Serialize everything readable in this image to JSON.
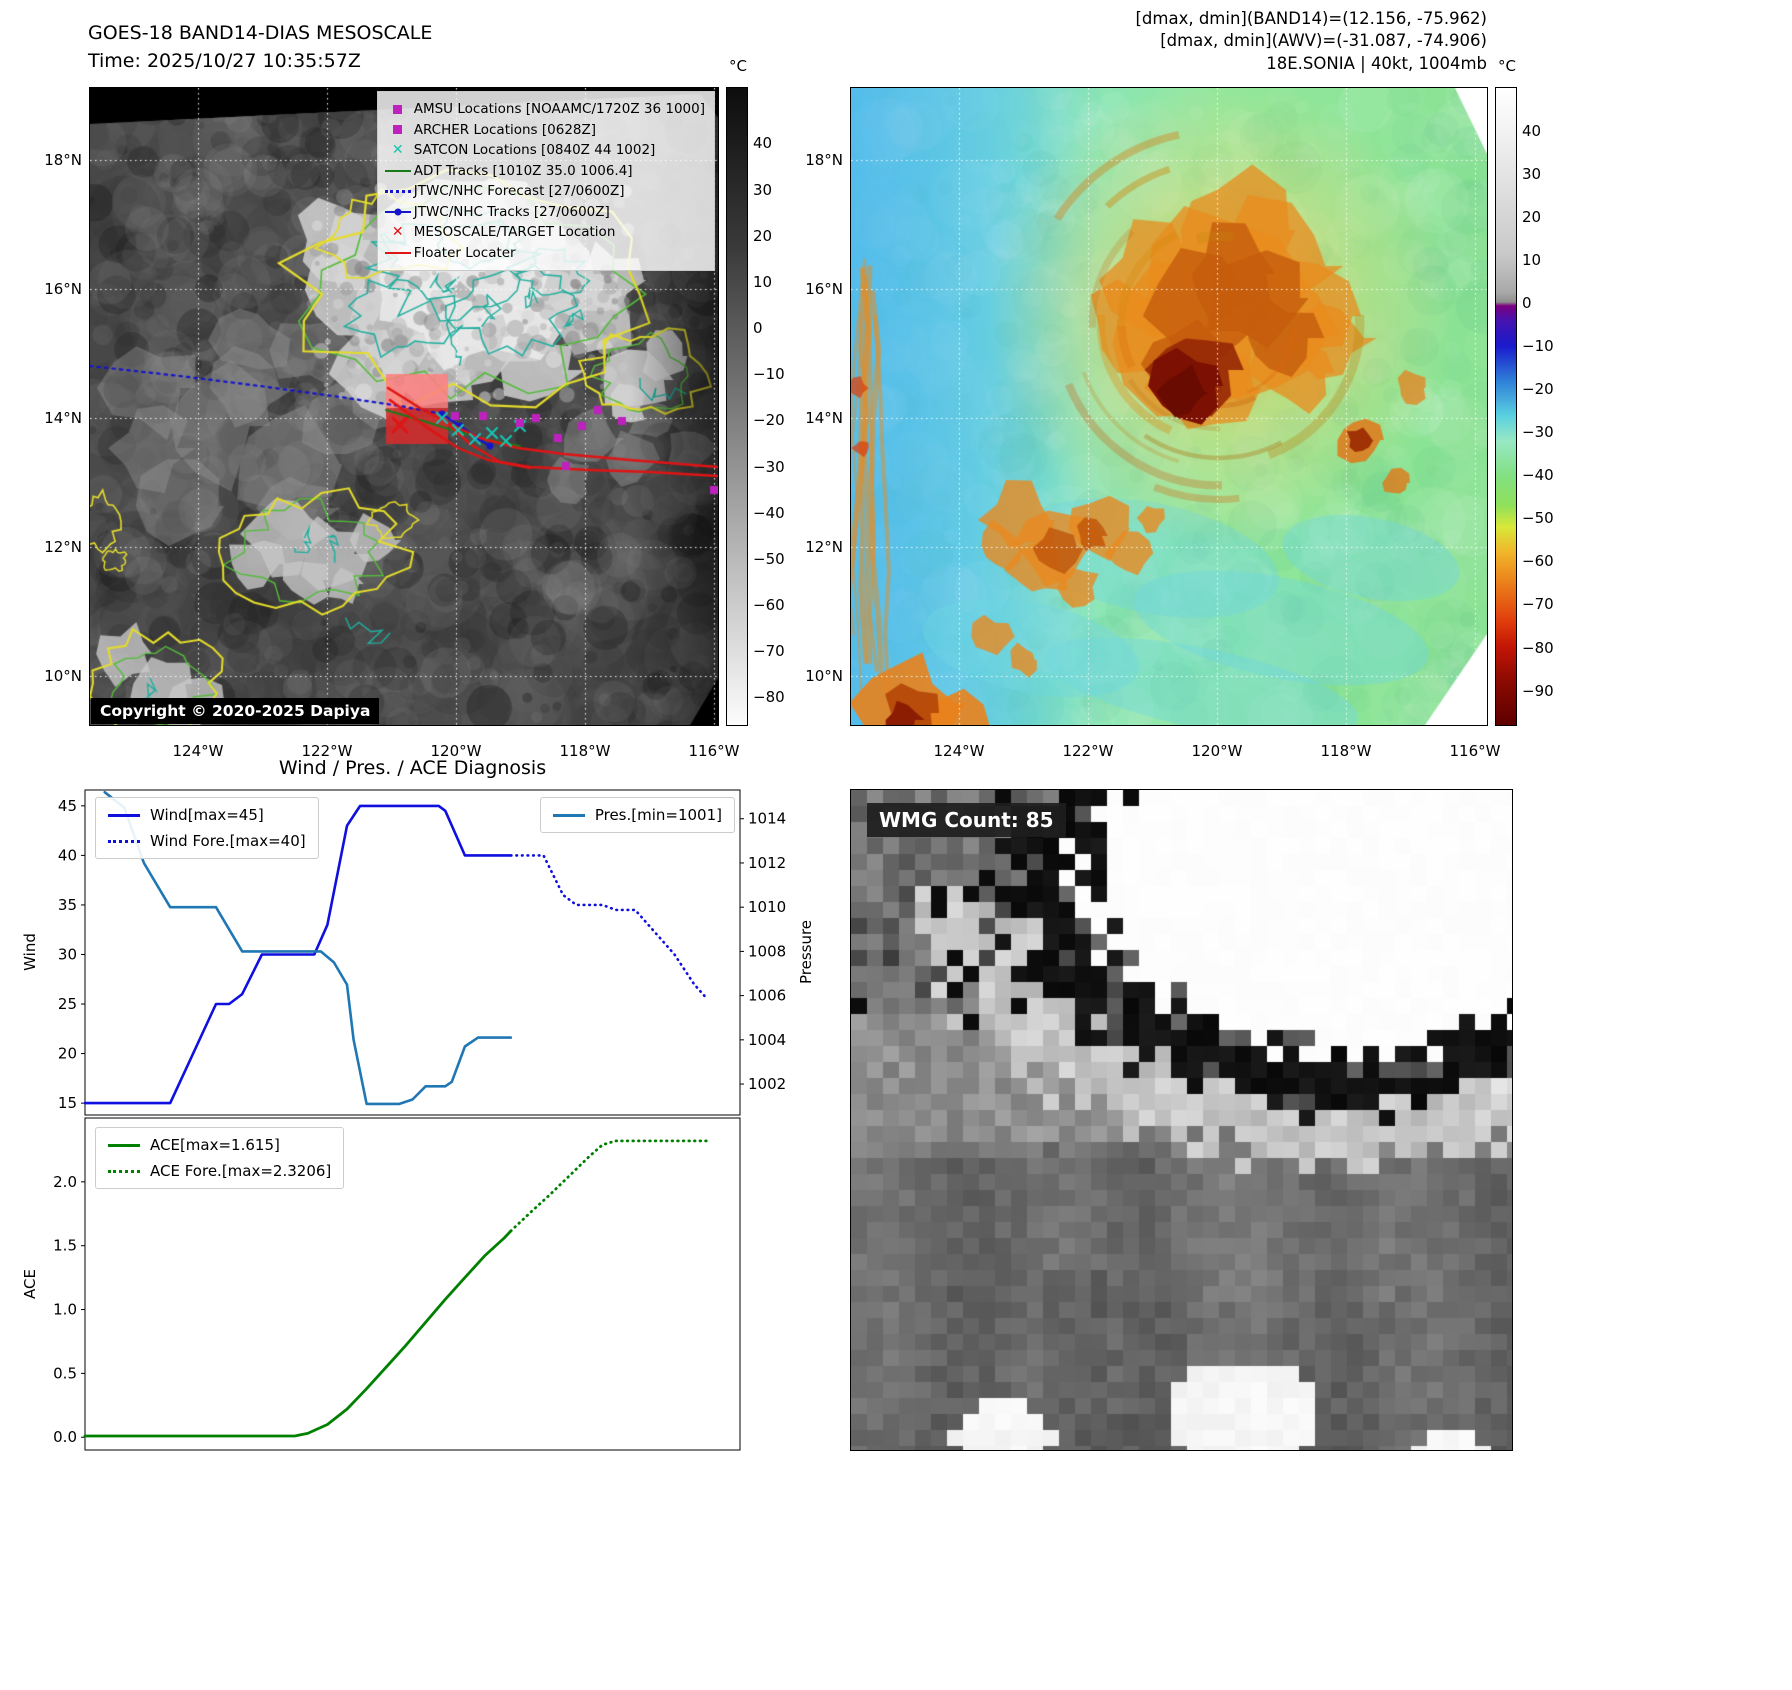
{
  "band14": {
    "title": "GOES-18 BAND14-DIAS MESOSCALE",
    "time": "Time: 2025/10/27 10:35:57Z",
    "copyright": "Copyright © 2020-2025 Dapiya",
    "legend": [
      {
        "icon": "square",
        "color": "#bf21bf",
        "label": "AMSU Locations [NOAAMC/1720Z 36 1000]"
      },
      {
        "icon": "square",
        "color": "#bf21bf",
        "label": "ARCHER Locations [0628Z]"
      },
      {
        "icon": "x",
        "color": "#19c2b0",
        "label": "SATCON Locations [0840Z 44 1002]"
      },
      {
        "icon": "line",
        "color": "#1a7a1a",
        "label": "ADT Tracks [1010Z 35.0 1006.4]"
      },
      {
        "icon": "line-dotted",
        "color": "#1414cc",
        "label": "JTWC/NHC Forecast [27/0600Z]"
      },
      {
        "icon": "line-dot",
        "color": "#1414cc",
        "label": "JTWC/NHC Tracks [27/0600Z]"
      },
      {
        "icon": "x",
        "color": "#e01414",
        "label": "MESOSCALE/TARGET Location"
      },
      {
        "icon": "line",
        "color": "#e01414",
        "label": "Floater Locater"
      }
    ],
    "lat_ticks": [
      "18°N",
      "16°N",
      "14°N",
      "12°N",
      "10°N"
    ],
    "lon_ticks": [
      "124°W",
      "122°W",
      "120°W",
      "118°W",
      "116°W"
    ],
    "colorbar": {
      "unit": "°C",
      "ticks": [
        "40",
        "30",
        "20",
        "10",
        "0",
        "−10",
        "−20",
        "−30",
        "−40",
        "−50",
        "−60",
        "−70",
        "−80"
      ]
    }
  },
  "awv": {
    "header_lines": [
      "[dmax, dmin](BAND14)=(12.156, -75.962)",
      "[dmax, dmin](AWV)=(-31.087, -74.906)",
      "18E.SONIA | 40kt, 1004mb"
    ],
    "lat_ticks": [
      "18°N",
      "16°N",
      "14°N",
      "12°N",
      "10°N"
    ],
    "lon_ticks": [
      "124°W",
      "122°W",
      "120°W",
      "118°W",
      "116°W"
    ],
    "colorbar": {
      "unit": "°C",
      "ticks": [
        "40",
        "30",
        "20",
        "10",
        "0",
        "−10",
        "−20",
        "−30",
        "−40",
        "−50",
        "−60",
        "−70",
        "−80",
        "−90"
      ]
    }
  },
  "wmg": {
    "label": "WMG Count: 85"
  },
  "chart_data": [
    {
      "type": "line",
      "title": "Wind / Pres. / ACE Diagnosis",
      "ylabel_left": "Wind",
      "ylabel_right": "Pressure",
      "y_left_ticks": [
        "15",
        "20",
        "25",
        "30",
        "35",
        "40",
        "45"
      ],
      "y_right_ticks": [
        "1002",
        "1004",
        "1006",
        "1008",
        "1010",
        "1012",
        "1014"
      ],
      "ylim_left": [
        13.8,
        46.6
      ],
      "ylim_right": [
        1000.6,
        1015.3
      ],
      "xlim": [
        0,
        100
      ],
      "grid": false,
      "legend_positions": [
        "upper left",
        "upper right"
      ],
      "series": [
        {
          "name": "Wind[max=45]",
          "axis": "left",
          "style": "solid",
          "color": "#0f0fe0",
          "points": [
            [
              0,
              15
            ],
            [
              13,
              15
            ],
            [
              20,
              25
            ],
            [
              22,
              25
            ],
            [
              24,
              26
            ],
            [
              27,
              30
            ],
            [
              35,
              30
            ],
            [
              37,
              33
            ],
            [
              40,
              43
            ],
            [
              42,
              45
            ],
            [
              54,
              45
            ],
            [
              55,
              44.5
            ],
            [
              58,
              40
            ],
            [
              65,
              40
            ]
          ]
        },
        {
          "name": "Wind Fore.[max=40]",
          "axis": "left",
          "style": "dotted",
          "color": "#0f0fe0",
          "points": [
            [
              65,
              40
            ],
            [
              70,
              40
            ],
            [
              73,
              36
            ],
            [
              75,
              35
            ],
            [
              79,
              35
            ],
            [
              81,
              34.5
            ],
            [
              84,
              34.5
            ],
            [
              86,
              33
            ],
            [
              88,
              31.5
            ],
            [
              90,
              30
            ],
            [
              93,
              27
            ],
            [
              95,
              25.5
            ]
          ]
        },
        {
          "name": "Pres.[min=1001]",
          "axis": "right",
          "style": "solid",
          "color": "#1f77b4",
          "points": [
            [
              3,
              1015.2
            ],
            [
              6,
              1014.5
            ],
            [
              9,
              1012
            ],
            [
              13,
              1010
            ],
            [
              20,
              1010
            ],
            [
              22,
              1009
            ],
            [
              24,
              1008
            ],
            [
              36,
              1008
            ],
            [
              38,
              1007.5
            ],
            [
              40,
              1006.5
            ],
            [
              41,
              1004
            ],
            [
              43,
              1001.1
            ],
            [
              48,
              1001.1
            ],
            [
              50,
              1001.3
            ],
            [
              52,
              1001.9
            ],
            [
              55,
              1001.9
            ],
            [
              56,
              1002.1
            ],
            [
              58,
              1003.7
            ],
            [
              60,
              1004.1
            ],
            [
              65,
              1004.1
            ]
          ]
        }
      ]
    },
    {
      "type": "line",
      "ylabel_left": "ACE",
      "y_left_ticks": [
        "0.0",
        "0.5",
        "1.0",
        "1.5",
        "2.0"
      ],
      "ylim_left": [
        -0.1,
        2.5
      ],
      "xlim": [
        0,
        100
      ],
      "grid": false,
      "legend_positions": [
        "upper left"
      ],
      "series": [
        {
          "name": "ACE[max=1.615]",
          "axis": "left",
          "style": "solid",
          "color": "#008000",
          "points": [
            [
              0,
              0.01
            ],
            [
              32,
              0.01
            ],
            [
              34,
              0.03
            ],
            [
              37,
              0.1
            ],
            [
              40,
              0.22
            ],
            [
              43,
              0.38
            ],
            [
              46,
              0.55
            ],
            [
              49,
              0.72
            ],
            [
              52,
              0.9
            ],
            [
              55,
              1.08
            ],
            [
              58,
              1.25
            ],
            [
              61,
              1.42
            ],
            [
              64,
              1.56
            ],
            [
              65,
              1.615
            ]
          ]
        },
        {
          "name": "ACE Fore.[max=2.3206]",
          "axis": "left",
          "style": "dotted",
          "color": "#008000",
          "points": [
            [
              65,
              1.615
            ],
            [
              68,
              1.76
            ],
            [
              71,
              1.9
            ],
            [
              74,
              2.05
            ],
            [
              77,
              2.2
            ],
            [
              79,
              2.29
            ],
            [
              81,
              2.3206
            ],
            [
              95,
              2.3206
            ]
          ]
        }
      ]
    }
  ]
}
